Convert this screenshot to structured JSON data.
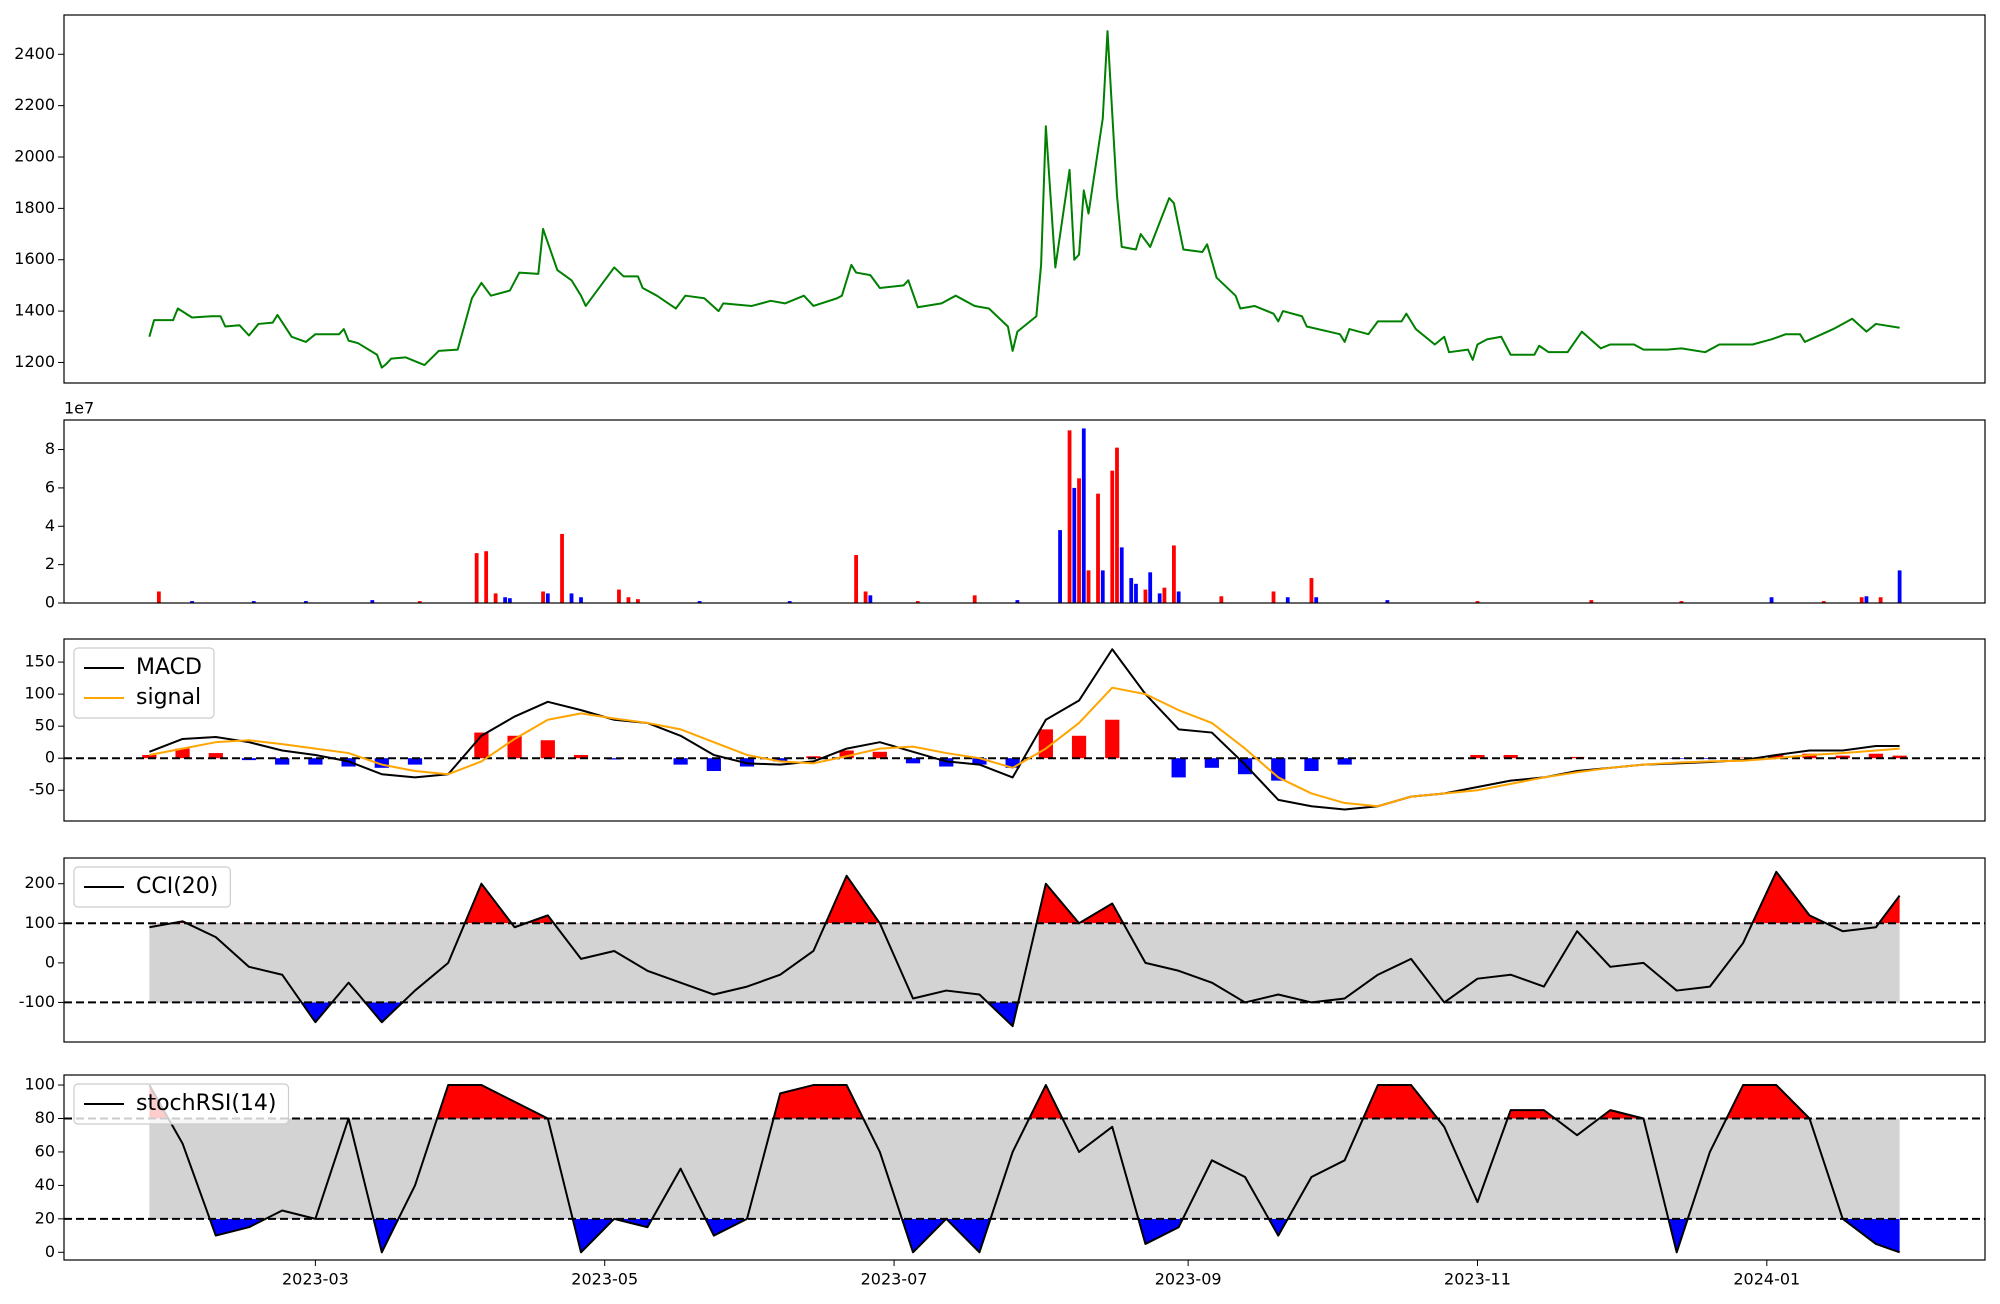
{
  "chart_data": [
    {
      "type": "line",
      "x": [
        "2023-01-25",
        "2023-01-26",
        "2023-01-30",
        "2023-01-31",
        "2023-02-03",
        "2023-02-07",
        "2023-02-09",
        "2023-02-10",
        "2023-02-13",
        "2023-02-15",
        "2023-02-17",
        "2023-02-20",
        "2023-02-21",
        "2023-02-24",
        "2023-02-27",
        "2023-03-01",
        "2023-03-06",
        "2023-03-07",
        "2023-03-08",
        "2023-03-10",
        "2023-03-14",
        "2023-03-15",
        "2023-03-16",
        "2023-03-17",
        "2023-03-20",
        "2023-03-24",
        "2023-03-27",
        "2023-03-31",
        "2023-04-03",
        "2023-04-05",
        "2023-04-07",
        "2023-04-11",
        "2023-04-13",
        "2023-04-17",
        "2023-04-18",
        "2023-04-21",
        "2023-04-24",
        "2023-04-26",
        "2023-04-27",
        "2023-05-03",
        "2023-05-05",
        "2023-05-08",
        "2023-05-09",
        "2023-05-12",
        "2023-05-16",
        "2023-05-18",
        "2023-05-22",
        "2023-05-25",
        "2023-05-26",
        "2023-06-01",
        "2023-06-05",
        "2023-06-08",
        "2023-06-12",
        "2023-06-14",
        "2023-06-19",
        "2023-06-20",
        "2023-06-22",
        "2023-06-23",
        "2023-06-26",
        "2023-06-28",
        "2023-07-03",
        "2023-07-04",
        "2023-07-06",
        "2023-07-11",
        "2023-07-14",
        "2023-07-18",
        "2023-07-21",
        "2023-07-25",
        "2023-07-26",
        "2023-07-27",
        "2023-07-31",
        "2023-08-01",
        "2023-08-02",
        "2023-08-04",
        "2023-08-07",
        "2023-08-08",
        "2023-08-09",
        "2023-08-10",
        "2023-08-11",
        "2023-08-14",
        "2023-08-15",
        "2023-08-17",
        "2023-08-18",
        "2023-08-21",
        "2023-08-22",
        "2023-08-24",
        "2023-08-28",
        "2023-08-29",
        "2023-08-31",
        "2023-09-04",
        "2023-09-05",
        "2023-09-07",
        "2023-09-11",
        "2023-09-12",
        "2023-09-15",
        "2023-09-19",
        "2023-09-20",
        "2023-09-21",
        "2023-09-25",
        "2023-09-26",
        "2023-10-03",
        "2023-10-04",
        "2023-10-05",
        "2023-10-09",
        "2023-10-11",
        "2023-10-16",
        "2023-10-17",
        "2023-10-19",
        "2023-10-23",
        "2023-10-25",
        "2023-10-26",
        "2023-10-30",
        "2023-10-31",
        "2023-11-01",
        "2023-11-03",
        "2023-11-06",
        "2023-11-08",
        "2023-11-13",
        "2023-11-14",
        "2023-11-16",
        "2023-11-20",
        "2023-11-23",
        "2023-11-27",
        "2023-11-29",
        "2023-12-04",
        "2023-12-06",
        "2023-12-11",
        "2023-12-14",
        "2023-12-19",
        "2023-12-22",
        "2023-12-29",
        "2024-01-02",
        "2024-01-05",
        "2024-01-08",
        "2024-01-09",
        "2024-01-15",
        "2024-01-18",
        "2024-01-19",
        "2024-01-22",
        "2024-01-24",
        "2024-01-29"
      ],
      "series": [
        {
          "color": "green",
          "values": [
            1300,
            1365,
            1365,
            1410,
            1375,
            1380,
            1380,
            1340,
            1345,
            1305,
            1350,
            1355,
            1385,
            1300,
            1280,
            1310,
            1310,
            1330,
            1285,
            1275,
            1230,
            1180,
            1195,
            1215,
            1220,
            1190,
            1245,
            1250,
            1450,
            1510,
            1460,
            1480,
            1550,
            1545,
            1720,
            1560,
            1520,
            1460,
            1420,
            1570,
            1535,
            1535,
            1490,
            1460,
            1410,
            1460,
            1450,
            1400,
            1430,
            1420,
            1440,
            1430,
            1460,
            1420,
            1450,
            1460,
            1580,
            1550,
            1540,
            1490,
            1500,
            1520,
            1415,
            1430,
            1460,
            1420,
            1410,
            1340,
            1245,
            1320,
            1380,
            1580,
            2120,
            1570,
            1950,
            1600,
            1620,
            1870,
            1780,
            2150,
            2490,
            1850,
            1650,
            1640,
            1700,
            1650,
            1840,
            1820,
            1640,
            1630,
            1660,
            1530,
            1460,
            1410,
            1420,
            1390,
            1360,
            1400,
            1380,
            1340,
            1310,
            1280,
            1330,
            1310,
            1360,
            1360,
            1390,
            1330,
            1270,
            1300,
            1240,
            1250,
            1210,
            1270,
            1290,
            1300,
            1230,
            1230,
            1265,
            1240,
            1240,
            1320,
            1255,
            1270,
            1270,
            1250,
            1250,
            1255,
            1240,
            1270,
            1270,
            1290,
            1310,
            1310,
            1280,
            1330,
            1360,
            1370,
            1320,
            1350,
            1335
          ]
        }
      ],
      "xlim": [
        "2023-01-07",
        "2024-02-16"
      ],
      "ylim": [
        1120,
        2553
      ],
      "yticks": [
        1200,
        1400,
        1600,
        1800,
        2000,
        2200,
        2400
      ]
    },
    {
      "type": "bar",
      "offset_label": "1e7",
      "x": [
        "2023-01-27",
        "2023-02-03",
        "2023-02-16",
        "2023-02-27",
        "2023-03-13",
        "2023-03-23",
        "2023-04-04",
        "2023-04-06",
        "2023-04-08",
        "2023-04-10",
        "2023-04-11",
        "2023-04-18",
        "2023-04-19",
        "2023-04-22",
        "2023-04-24",
        "2023-04-26",
        "2023-05-04",
        "2023-05-06",
        "2023-05-08",
        "2023-05-21",
        "2023-06-09",
        "2023-06-23",
        "2023-06-25",
        "2023-06-26",
        "2023-07-06",
        "2023-07-18",
        "2023-07-27",
        "2023-08-05",
        "2023-08-07",
        "2023-08-08",
        "2023-08-09",
        "2023-08-10",
        "2023-08-11",
        "2023-08-13",
        "2023-08-14",
        "2023-08-16",
        "2023-08-17",
        "2023-08-18",
        "2023-08-20",
        "2023-08-21",
        "2023-08-23",
        "2023-08-24",
        "2023-08-26",
        "2023-08-27",
        "2023-08-29",
        "2023-08-30",
        "2023-09-08",
        "2023-09-19",
        "2023-09-22",
        "2023-09-27",
        "2023-09-28",
        "2023-10-13",
        "2023-11-01",
        "2023-11-25",
        "2023-12-14",
        "2024-01-02",
        "2024-01-13",
        "2024-01-21",
        "2024-01-22",
        "2024-01-25",
        "2024-01-29"
      ],
      "values": [
        0.6,
        0.1,
        0.1,
        0.1,
        0.15,
        0.1,
        2.6,
        2.7,
        0.5,
        0.3,
        0.25,
        0.6,
        0.5,
        3.6,
        0.5,
        0.3,
        0.7,
        0.3,
        0.2,
        0.1,
        0.1,
        2.5,
        0.6,
        0.4,
        0.1,
        0.4,
        0.15,
        3.8,
        9.0,
        6.0,
        6.5,
        9.1,
        1.7,
        5.7,
        1.7,
        6.9,
        8.1,
        2.9,
        1.3,
        1.0,
        0.7,
        1.6,
        0.5,
        0.8,
        3.0,
        0.6,
        0.35,
        0.6,
        0.3,
        1.3,
        0.3,
        0.15,
        0.1,
        0.15,
        0.1,
        0.3,
        0.1,
        0.3,
        0.35,
        0.3,
        1.7
      ],
      "colors": [
        "red",
        "blue",
        "blue",
        "blue",
        "blue",
        "red",
        "red",
        "red",
        "red",
        "blue",
        "blue",
        "red",
        "blue",
        "red",
        "blue",
        "blue",
        "red",
        "red",
        "red",
        "blue",
        "blue",
        "red",
        "red",
        "blue",
        "red",
        "red",
        "blue",
        "blue",
        "red",
        "blue",
        "red",
        "blue",
        "red",
        "red",
        "blue",
        "red",
        "red",
        "blue",
        "blue",
        "blue",
        "red",
        "blue",
        "blue",
        "red",
        "red",
        "blue",
        "red",
        "red",
        "blue",
        "red",
        "blue",
        "blue",
        "red",
        "red",
        "red",
        "blue",
        "red",
        "red",
        "blue",
        "red",
        "blue"
      ],
      "xlim": [
        "2023-01-07",
        "2024-02-16"
      ],
      "ylim": [
        0,
        9.54
      ],
      "yticks": [
        0,
        2,
        4,
        6,
        8
      ]
    },
    {
      "type": "line",
      "x": [
        "2023-01-25",
        "2023-02-01",
        "2023-02-08",
        "2023-02-15",
        "2023-02-22",
        "2023-03-01",
        "2023-03-08",
        "2023-03-15",
        "2023-03-22",
        "2023-03-29",
        "2023-04-05",
        "2023-04-12",
        "2023-04-19",
        "2023-04-26",
        "2023-05-03",
        "2023-05-10",
        "2023-05-17",
        "2023-05-24",
        "2023-05-31",
        "2023-06-07",
        "2023-06-14",
        "2023-06-21",
        "2023-06-28",
        "2023-07-05",
        "2023-07-12",
        "2023-07-19",
        "2023-07-26",
        "2023-08-02",
        "2023-08-09",
        "2023-08-16",
        "2023-08-23",
        "2023-08-30",
        "2023-09-06",
        "2023-09-13",
        "2023-09-20",
        "2023-09-27",
        "2023-10-04",
        "2023-10-11",
        "2023-10-18",
        "2023-10-25",
        "2023-11-01",
        "2023-11-08",
        "2023-11-15",
        "2023-11-22",
        "2023-11-29",
        "2023-12-06",
        "2023-12-13",
        "2023-12-20",
        "2023-12-27",
        "2024-01-03",
        "2024-01-10",
        "2024-01-17",
        "2024-01-24",
        "2024-01-29"
      ],
      "series": [
        {
          "name": "MACD",
          "color": "black",
          "values": [
            10,
            30,
            33,
            25,
            12,
            5,
            -5,
            -25,
            -30,
            -25,
            35,
            65,
            88,
            75,
            60,
            55,
            35,
            5,
            -8,
            -10,
            -5,
            15,
            25,
            10,
            -5,
            -10,
            -30,
            60,
            90,
            170,
            100,
            45,
            40,
            -10,
            -65,
            -75,
            -80,
            -75,
            -60,
            -55,
            -45,
            -35,
            -30,
            -20,
            -15,
            -10,
            -8,
            -6,
            -3,
            5,
            12,
            12,
            19,
            19
          ]
        },
        {
          "name": "signal",
          "color": "orange",
          "values": [
            5,
            15,
            25,
            28,
            22,
            15,
            8,
            -10,
            -20,
            -25,
            -5,
            30,
            60,
            70,
            62,
            55,
            45,
            25,
            5,
            -5,
            -8,
            3,
            15,
            18,
            8,
            0,
            -15,
            15,
            55,
            110,
            100,
            75,
            55,
            15,
            -30,
            -55,
            -70,
            -75,
            -60,
            -55,
            -50,
            -40,
            -30,
            -22,
            -15,
            -10,
            -7,
            -5,
            -4,
            0,
            5,
            8,
            12,
            15
          ]
        }
      ],
      "histogram": {
        "values": [
          5,
          15,
          8,
          -3,
          -10,
          -10,
          -13,
          -15,
          -10,
          0,
          40,
          35,
          28,
          5,
          -2,
          0,
          -10,
          -20,
          -13,
          -5,
          3,
          12,
          10,
          -8,
          -13,
          -10,
          -15,
          45,
          35,
          60,
          0,
          -30,
          -15,
          -25,
          -35,
          -20,
          -10,
          0,
          0,
          0,
          5,
          5,
          0,
          2,
          0,
          0,
          -1,
          -1,
          1,
          5,
          7,
          4,
          7,
          4
        ],
        "positive_color": "red",
        "negative_color": "blue"
      },
      "reference_lines": [
        0
      ],
      "legend": "upper left",
      "xlim": [
        "2023-01-07",
        "2024-02-16"
      ],
      "ylim": [
        -98,
        186
      ],
      "yticks": [
        -50,
        0,
        50,
        100,
        150
      ]
    },
    {
      "type": "line",
      "x": [
        "2023-01-25",
        "2023-02-01",
        "2023-02-08",
        "2023-02-15",
        "2023-02-22",
        "2023-03-01",
        "2023-03-08",
        "2023-03-15",
        "2023-03-22",
        "2023-03-29",
        "2023-04-05",
        "2023-04-12",
        "2023-04-19",
        "2023-04-26",
        "2023-05-03",
        "2023-05-10",
        "2023-05-17",
        "2023-05-24",
        "2023-05-31",
        "2023-06-07",
        "2023-06-14",
        "2023-06-21",
        "2023-06-28",
        "2023-07-05",
        "2023-07-12",
        "2023-07-19",
        "2023-07-26",
        "2023-08-02",
        "2023-08-09",
        "2023-08-16",
        "2023-08-23",
        "2023-08-30",
        "2023-09-06",
        "2023-09-13",
        "2023-09-20",
        "2023-09-27",
        "2023-10-04",
        "2023-10-11",
        "2023-10-18",
        "2023-10-25",
        "2023-11-01",
        "2023-11-08",
        "2023-11-15",
        "2023-11-22",
        "2023-11-29",
        "2023-12-06",
        "2023-12-13",
        "2023-12-20",
        "2023-12-27",
        "2024-01-03",
        "2024-01-10",
        "2024-01-17",
        "2024-01-24",
        "2024-01-29"
      ],
      "series": [
        {
          "name": "CCI(20)",
          "color": "black",
          "values": [
            90,
            105,
            65,
            -10,
            -30,
            -150,
            -50,
            -150,
            -70,
            0,
            200,
            90,
            120,
            10,
            30,
            -20,
            -50,
            -80,
            -60,
            -30,
            30,
            220,
            100,
            -90,
            -70,
            -80,
            -160,
            200,
            100,
            150,
            0,
            -20,
            -50,
            -100,
            -80,
            -100,
            -90,
            -30,
            10,
            -100,
            -40,
            -30,
            -60,
            80,
            -10,
            0,
            -70,
            -60,
            50,
            230,
            120,
            80,
            90,
            170
          ]
        }
      ],
      "bands": [
        -100,
        100
      ],
      "band_color": "lightgray",
      "above_color": "red",
      "below_color": "blue",
      "legend": "upper left",
      "xlim": [
        "2023-01-07",
        "2024-02-16"
      ],
      "ylim": [
        -200,
        265
      ],
      "yticks": [
        -100,
        0,
        100,
        200
      ]
    },
    {
      "type": "line",
      "x": [
        "2023-01-25",
        "2023-02-01",
        "2023-02-08",
        "2023-02-15",
        "2023-02-22",
        "2023-03-01",
        "2023-03-08",
        "2023-03-15",
        "2023-03-22",
        "2023-03-29",
        "2023-04-05",
        "2023-04-12",
        "2023-04-19",
        "2023-04-26",
        "2023-05-03",
        "2023-05-10",
        "2023-05-17",
        "2023-05-24",
        "2023-05-31",
        "2023-06-07",
        "2023-06-14",
        "2023-06-21",
        "2023-06-28",
        "2023-07-05",
        "2023-07-12",
        "2023-07-19",
        "2023-07-26",
        "2023-08-02",
        "2023-08-09",
        "2023-08-16",
        "2023-08-23",
        "2023-08-30",
        "2023-09-06",
        "2023-09-13",
        "2023-09-20",
        "2023-09-27",
        "2023-10-04",
        "2023-10-11",
        "2023-10-18",
        "2023-10-25",
        "2023-11-01",
        "2023-11-08",
        "2023-11-15",
        "2023-11-22",
        "2023-11-29",
        "2023-12-06",
        "2023-12-13",
        "2023-12-20",
        "2023-12-27",
        "2024-01-03",
        "2024-01-10",
        "2024-01-17",
        "2024-01-24",
        "2024-01-29"
      ],
      "series": [
        {
          "name": "stochRSI(14)",
          "color": "black",
          "values": [
            100,
            65,
            10,
            15,
            25,
            20,
            80,
            0,
            40,
            100,
            100,
            90,
            80,
            0,
            20,
            15,
            50,
            10,
            20,
            95,
            100,
            100,
            60,
            0,
            20,
            0,
            60,
            100,
            60,
            75,
            5,
            15,
            55,
            45,
            10,
            45,
            55,
            100,
            100,
            75,
            30,
            85,
            85,
            70,
            85,
            80,
            0,
            60,
            100,
            100,
            80,
            20,
            5,
            0
          ]
        }
      ],
      "bands": [
        20,
        80
      ],
      "band_color": "lightgray",
      "above_color": "red",
      "below_color": "blue",
      "legend": "upper left",
      "xlim": [
        "2023-01-07",
        "2024-02-16"
      ],
      "ylim": [
        -4.6,
        106
      ],
      "yticks": [
        0,
        20,
        40,
        60,
        80,
        100
      ],
      "xticks": [
        {
          "value": "2023-03-01",
          "label": "2023-03"
        },
        {
          "value": "2023-05-01",
          "label": "2023-05"
        },
        {
          "value": "2023-07-01",
          "label": "2023-07"
        },
        {
          "value": "2023-09-01",
          "label": "2023-09"
        },
        {
          "value": "2023-11-01",
          "label": "2023-11"
        },
        {
          "value": "2024-01-01",
          "label": "2024-01"
        }
      ]
    }
  ]
}
